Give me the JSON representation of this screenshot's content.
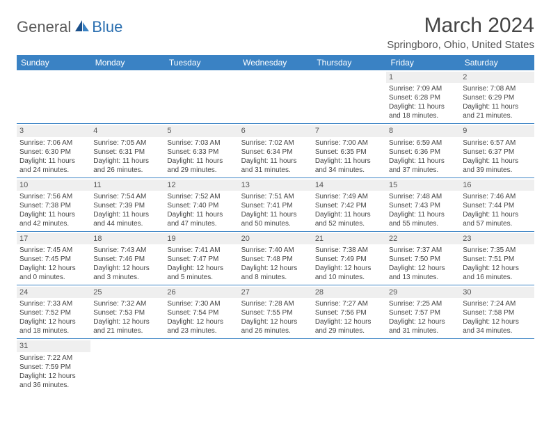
{
  "logo": {
    "general": "General",
    "blue": "Blue"
  },
  "title": "March 2024",
  "location": "Springboro, Ohio, United States",
  "header_bg": "#3a82c4",
  "header_fg": "#ffffff",
  "rule_color": "#3a82c4",
  "daynum_bg": "#efefef",
  "weekdays": [
    "Sunday",
    "Monday",
    "Tuesday",
    "Wednesday",
    "Thursday",
    "Friday",
    "Saturday"
  ],
  "first_weekday_index": 5,
  "days": [
    {
      "n": 1,
      "sunrise": "7:09 AM",
      "sunset": "6:28 PM",
      "daylight": "11 hours and 18 minutes."
    },
    {
      "n": 2,
      "sunrise": "7:08 AM",
      "sunset": "6:29 PM",
      "daylight": "11 hours and 21 minutes."
    },
    {
      "n": 3,
      "sunrise": "7:06 AM",
      "sunset": "6:30 PM",
      "daylight": "11 hours and 24 minutes."
    },
    {
      "n": 4,
      "sunrise": "7:05 AM",
      "sunset": "6:31 PM",
      "daylight": "11 hours and 26 minutes."
    },
    {
      "n": 5,
      "sunrise": "7:03 AM",
      "sunset": "6:33 PM",
      "daylight": "11 hours and 29 minutes."
    },
    {
      "n": 6,
      "sunrise": "7:02 AM",
      "sunset": "6:34 PM",
      "daylight": "11 hours and 31 minutes."
    },
    {
      "n": 7,
      "sunrise": "7:00 AM",
      "sunset": "6:35 PM",
      "daylight": "11 hours and 34 minutes."
    },
    {
      "n": 8,
      "sunrise": "6:59 AM",
      "sunset": "6:36 PM",
      "daylight": "11 hours and 37 minutes."
    },
    {
      "n": 9,
      "sunrise": "6:57 AM",
      "sunset": "6:37 PM",
      "daylight": "11 hours and 39 minutes."
    },
    {
      "n": 10,
      "sunrise": "7:56 AM",
      "sunset": "7:38 PM",
      "daylight": "11 hours and 42 minutes."
    },
    {
      "n": 11,
      "sunrise": "7:54 AM",
      "sunset": "7:39 PM",
      "daylight": "11 hours and 44 minutes."
    },
    {
      "n": 12,
      "sunrise": "7:52 AM",
      "sunset": "7:40 PM",
      "daylight": "11 hours and 47 minutes."
    },
    {
      "n": 13,
      "sunrise": "7:51 AM",
      "sunset": "7:41 PM",
      "daylight": "11 hours and 50 minutes."
    },
    {
      "n": 14,
      "sunrise": "7:49 AM",
      "sunset": "7:42 PM",
      "daylight": "11 hours and 52 minutes."
    },
    {
      "n": 15,
      "sunrise": "7:48 AM",
      "sunset": "7:43 PM",
      "daylight": "11 hours and 55 minutes."
    },
    {
      "n": 16,
      "sunrise": "7:46 AM",
      "sunset": "7:44 PM",
      "daylight": "11 hours and 57 minutes."
    },
    {
      "n": 17,
      "sunrise": "7:45 AM",
      "sunset": "7:45 PM",
      "daylight": "12 hours and 0 minutes."
    },
    {
      "n": 18,
      "sunrise": "7:43 AM",
      "sunset": "7:46 PM",
      "daylight": "12 hours and 3 minutes."
    },
    {
      "n": 19,
      "sunrise": "7:41 AM",
      "sunset": "7:47 PM",
      "daylight": "12 hours and 5 minutes."
    },
    {
      "n": 20,
      "sunrise": "7:40 AM",
      "sunset": "7:48 PM",
      "daylight": "12 hours and 8 minutes."
    },
    {
      "n": 21,
      "sunrise": "7:38 AM",
      "sunset": "7:49 PM",
      "daylight": "12 hours and 10 minutes."
    },
    {
      "n": 22,
      "sunrise": "7:37 AM",
      "sunset": "7:50 PM",
      "daylight": "12 hours and 13 minutes."
    },
    {
      "n": 23,
      "sunrise": "7:35 AM",
      "sunset": "7:51 PM",
      "daylight": "12 hours and 16 minutes."
    },
    {
      "n": 24,
      "sunrise": "7:33 AM",
      "sunset": "7:52 PM",
      "daylight": "12 hours and 18 minutes."
    },
    {
      "n": 25,
      "sunrise": "7:32 AM",
      "sunset": "7:53 PM",
      "daylight": "12 hours and 21 minutes."
    },
    {
      "n": 26,
      "sunrise": "7:30 AM",
      "sunset": "7:54 PM",
      "daylight": "12 hours and 23 minutes."
    },
    {
      "n": 27,
      "sunrise": "7:28 AM",
      "sunset": "7:55 PM",
      "daylight": "12 hours and 26 minutes."
    },
    {
      "n": 28,
      "sunrise": "7:27 AM",
      "sunset": "7:56 PM",
      "daylight": "12 hours and 29 minutes."
    },
    {
      "n": 29,
      "sunrise": "7:25 AM",
      "sunset": "7:57 PM",
      "daylight": "12 hours and 31 minutes."
    },
    {
      "n": 30,
      "sunrise": "7:24 AM",
      "sunset": "7:58 PM",
      "daylight": "12 hours and 34 minutes."
    },
    {
      "n": 31,
      "sunrise": "7:22 AM",
      "sunset": "7:59 PM",
      "daylight": "12 hours and 36 minutes."
    }
  ],
  "labels": {
    "sunrise": "Sunrise:",
    "sunset": "Sunset:",
    "daylight": "Daylight:"
  }
}
